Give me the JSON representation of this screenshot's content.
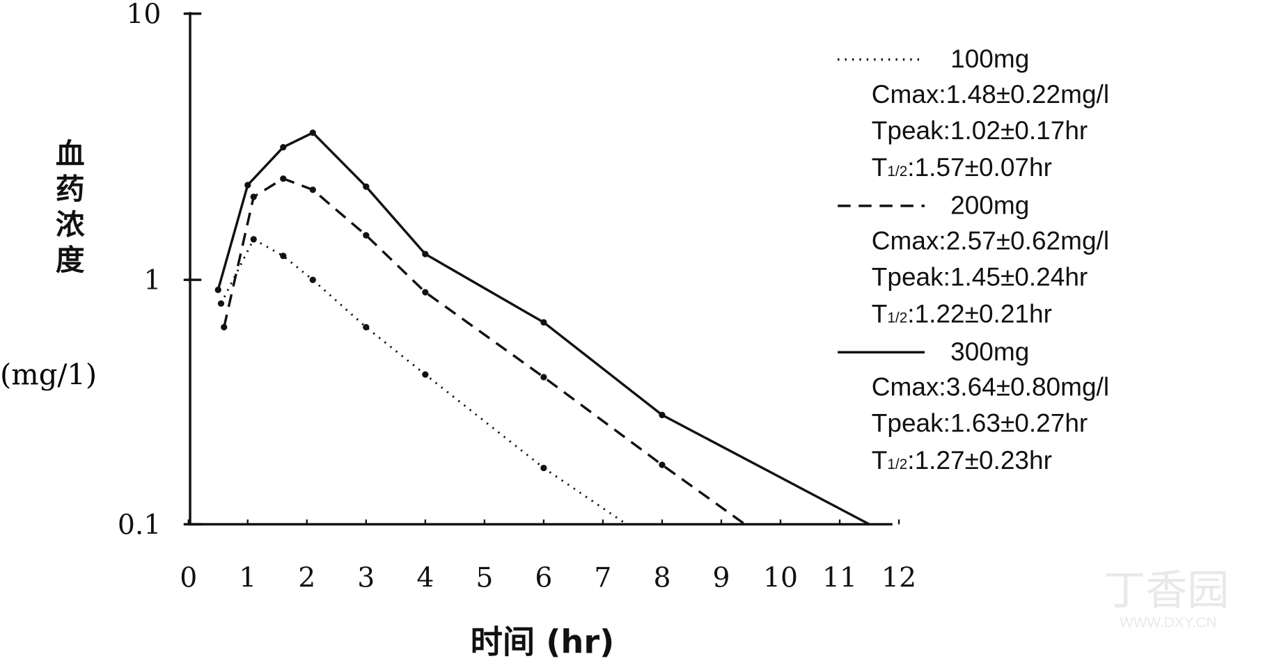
{
  "chart_data": {
    "type": "line",
    "title": "",
    "xlabel": "时间 (hr)",
    "ylabel": "血药浓度",
    "ylabel_unit": "(mg/1)",
    "yscale": "log",
    "ylim": [
      0.1,
      10
    ],
    "xlim": [
      0,
      12
    ],
    "yticks": [
      {
        "v": 10,
        "label": "10"
      },
      {
        "v": 1,
        "label": "1"
      },
      {
        "v": 0.1,
        "label": "0.1"
      }
    ],
    "xticks": [
      "0",
      "1",
      "2",
      "3",
      "4",
      "5",
      "6",
      "7",
      "8",
      "9",
      "10",
      "11",
      "12"
    ],
    "grid": false,
    "legend_position": "top-right",
    "series": [
      {
        "name": "100mg",
        "style": "dotted",
        "x": [
          0.55,
          1.1,
          1.6,
          2.1,
          3,
          4,
          6,
          7.4
        ],
        "y": [
          0.8,
          1.42,
          1.23,
          1.0,
          0.64,
          0.41,
          0.17,
          0.1
        ],
        "marker_count": 7,
        "stats": {
          "cmax": ":1.48±0.22mg/l",
          "tpeak": ":1.02±0.17hr",
          "thalf": ":1.57±0.07hr"
        }
      },
      {
        "name": "200mg",
        "style": "dashed",
        "x": [
          0.6,
          1.1,
          1.6,
          2.1,
          3,
          4,
          6,
          8,
          9.4
        ],
        "y": [
          0.64,
          2.05,
          2.4,
          2.18,
          1.47,
          0.89,
          0.4,
          0.175,
          0.1
        ],
        "marker_count": 8,
        "stats": {
          "cmax": ":2.57±0.62mg/l",
          "tpeak": ":1.45±0.24hr",
          "thalf": ":1.22±0.21hr"
        }
      },
      {
        "name": "300mg",
        "style": "solid",
        "x": [
          0.5,
          1,
          1.6,
          2.1,
          3,
          4,
          6,
          8,
          11.5
        ],
        "y": [
          0.91,
          2.27,
          3.15,
          3.57,
          2.24,
          1.25,
          0.67,
          0.28,
          0.1
        ],
        "marker_count": 8,
        "stats": {
          "cmax": ":3.64±0.80mg/l",
          "tpeak": ":1.63±0.27hr",
          "thalf": ":1.27±0.23hr"
        }
      }
    ],
    "legend_labels": {
      "cmax": "Cmax",
      "tpeak": "Tpeak",
      "thalf_T": "T",
      "thalf_sub": "1/2"
    }
  },
  "watermark": {
    "logo": "丁香园",
    "url": "WWW.DXY.CN"
  }
}
